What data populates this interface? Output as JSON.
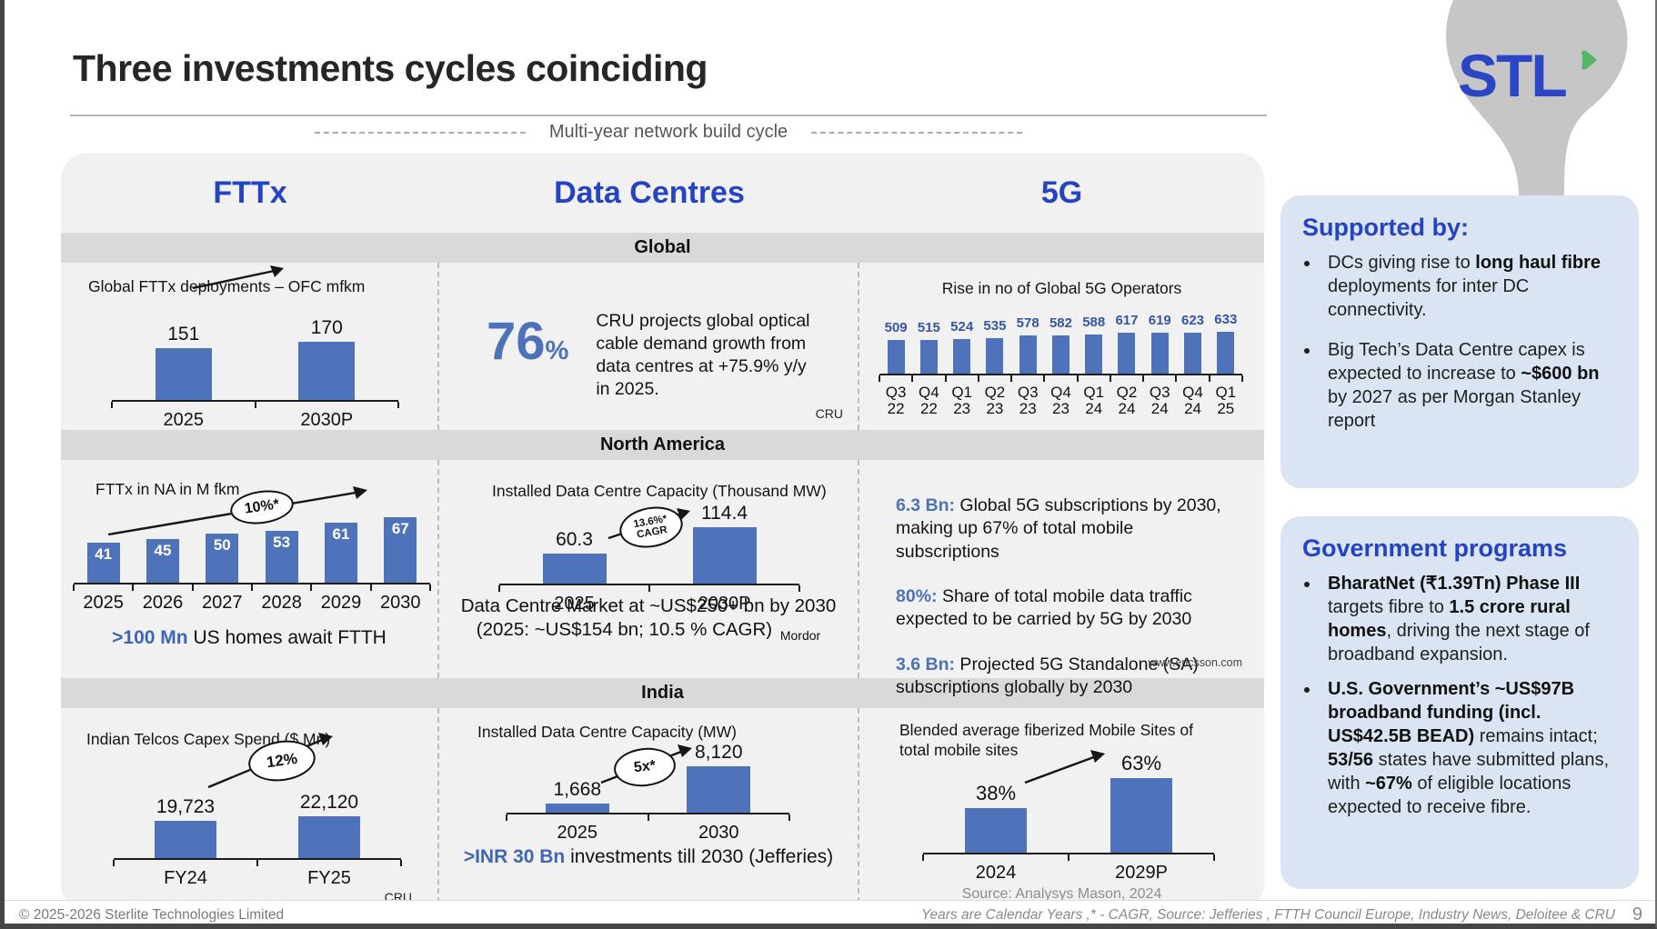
{
  "slide": {
    "title": "Three investments cycles coinciding",
    "build_cycle_label": "Multi-year network build cycle",
    "logo_text": "STL",
    "page_number": "9",
    "footer_left": "© 2025-2026 Sterlite Technologies Limited",
    "footer_right": "Years are Calendar Years ,* - CAGR,  Source: Jefferies , FTTH Council Europe, Industry News, Deloitee & CRU"
  },
  "columns": [
    "FTTx",
    "Data Centres",
    "5G"
  ],
  "rows": [
    "Global",
    "North America",
    "India"
  ],
  "chart_data": [
    {
      "id": "global-fttx-deployments",
      "type": "bar",
      "title": "Global FTTx deployments – OFC mfkm",
      "categories": [
        "2025",
        "2030P"
      ],
      "values": [
        151,
        170
      ],
      "labels": [
        "151",
        "170"
      ],
      "ylim": [
        0,
        170
      ],
      "grid": false
    },
    {
      "id": "global-5g-operators",
      "type": "bar",
      "title": "Rise in no of Global 5G Operators",
      "categories": [
        "Q3 22",
        "Q4 22",
        "Q1 23",
        "Q2 23",
        "Q3 23",
        "Q4 23",
        "Q1 24",
        "Q2 24",
        "Q3 24",
        "Q4 24",
        "Q1 25"
      ],
      "values": [
        509,
        515,
        524,
        535,
        578,
        582,
        588,
        617,
        619,
        623,
        633
      ],
      "labels": [
        "509",
        "515",
        "524",
        "535",
        "578",
        "582",
        "588",
        "617",
        "619",
        "623",
        "633"
      ],
      "ylim": [
        0,
        633
      ],
      "grid": false
    },
    {
      "id": "fttx-north-america",
      "type": "bar",
      "title": "FTTx in NA in M fkm",
      "categories": [
        "2025",
        "2026",
        "2027",
        "2028",
        "2029",
        "2030"
      ],
      "values": [
        41,
        45,
        50,
        53,
        61,
        67
      ],
      "labels": [
        "41",
        "45",
        "50",
        "53",
        "61",
        "67"
      ],
      "ylim": [
        0,
        67
      ],
      "annotation": "10%*",
      "grid": false
    },
    {
      "id": "installed-dc-capacity-na",
      "type": "bar",
      "title": "Installed Data Centre Capacity (Thousand MW)",
      "categories": [
        "2025",
        "2030P"
      ],
      "values": [
        60.3,
        114.4
      ],
      "labels": [
        "60.3",
        "114.4"
      ],
      "ylim": [
        0,
        114.4
      ],
      "annotation": "13.6%* CAGR",
      "grid": false
    },
    {
      "id": "indian-telcos-capex",
      "type": "bar",
      "title": "Indian Telcos Capex Spend ($ Mn)",
      "categories": [
        "FY24",
        "FY25"
      ],
      "values": [
        19723,
        22120
      ],
      "labels": [
        "19,723",
        "22,120"
      ],
      "ylim": [
        0,
        22120
      ],
      "annotation": "12%",
      "grid": false
    },
    {
      "id": "installed-dc-capacity-india",
      "type": "bar",
      "title": "Installed Data Centre Capacity (MW)",
      "categories": [
        "2025",
        "2030"
      ],
      "values": [
        1668,
        8120
      ],
      "labels": [
        "1,668",
        "8,120"
      ],
      "ylim": [
        0,
        8120
      ],
      "annotation": "5x*",
      "grid": false
    },
    {
      "id": "fiberized-mobile-sites",
      "type": "bar",
      "title": "Blended average fiberized Mobile Sites of total mobile sites",
      "categories": [
        "2024",
        "2029P"
      ],
      "values": [
        38,
        63
      ],
      "labels": [
        "38%",
        "63%"
      ],
      "ylim": [
        0,
        63
      ],
      "grid": false
    }
  ],
  "cells": {
    "dc_global": {
      "stat_value": "76",
      "stat_unit": "%",
      "text": "CRU projects global optical cable demand growth from data centres at +75.9% y/y in 2025.",
      "source": "CRU"
    },
    "fttx_na": {
      "badge": "10%*",
      "note": [
        {
          "t": ">100 Mn",
          "hl": true
        },
        {
          "t": " US homes await FTTH"
        }
      ]
    },
    "dc_na": {
      "badge_line1": "13.6%*",
      "badge_line2": "CAGR",
      "note": "Data Centre Market at ~US$250+ bn by 2030 (2025: ~US$154 bn; 10.5 % CAGR)",
      "source": "Mordor"
    },
    "g5_na": {
      "items": [
        [
          {
            "t": "6.3 Bn:",
            "hl": true
          },
          {
            "t": " Global 5G subscriptions by 2030, making up 67% of total mobile subscriptions"
          }
        ],
        [
          {
            "t": "80%:",
            "hl": true
          },
          {
            "t": " Share of total mobile data traffic expected to be carried by 5G by 2030"
          }
        ],
        [
          {
            "t": "3.6 Bn:",
            "hl": true
          },
          {
            "t": " Projected 5G Standalone (SA) subscriptions globally by 2030"
          }
        ]
      ],
      "source": "www.ericsson.com"
    },
    "fttx_india": {
      "badge": "12%",
      "source": "CRU"
    },
    "dc_india": {
      "badge": "5x*",
      "note": [
        {
          "t": ">INR 30 Bn",
          "hl": true
        },
        {
          "t": " investments till 2030 (Jefferies)"
        }
      ]
    },
    "g5_india": {
      "source": "Source: Analysys Mason, 2024"
    }
  },
  "sidebar": {
    "supported": {
      "title": "Supported by:",
      "bullets": [
        [
          {
            "t": "DCs giving rise to "
          },
          {
            "t": "long haul fibre",
            "b": true
          },
          {
            "t": " deployments for inter DC connectivity."
          }
        ],
        [
          {
            "t": "Big Tech’s Data Centre capex is expected to increase to "
          },
          {
            "t": "~$600 bn",
            "b": true
          },
          {
            "t": " by 2027 as per Morgan Stanley report"
          }
        ]
      ]
    },
    "government": {
      "title": "Government programs",
      "bullets": [
        [
          {
            "t": "BharatNet (₹1.39Tn) Phase III",
            "b": true
          },
          {
            "t": " targets fibre to "
          },
          {
            "t": "1.5 crore rural homes",
            "b": true
          },
          {
            "t": ", driving the next stage of broadband expansion."
          }
        ],
        [
          {
            "t": "U.S. Government’s ~US$97B broadband funding (incl. US$42.5B BEAD)",
            "b": true
          },
          {
            "t": " remains intact; "
          },
          {
            "t": "53/56",
            "b": true
          },
          {
            "t": " states have submitted plans, with "
          },
          {
            "t": "~67%",
            "b": true
          },
          {
            "t": " of eligible locations expected to receive fibre."
          }
        ]
      ]
    }
  },
  "colors": {
    "bar_blue": "#4e73bb",
    "heading_blue": "#2443c5",
    "highlight_blue": "#4d72ba",
    "band_gray": "#d9d9d9",
    "panel_gray": "#f1f1f1",
    "box_blue": "#dbe4f3",
    "swoosh_gray": "#c6c6c6"
  }
}
